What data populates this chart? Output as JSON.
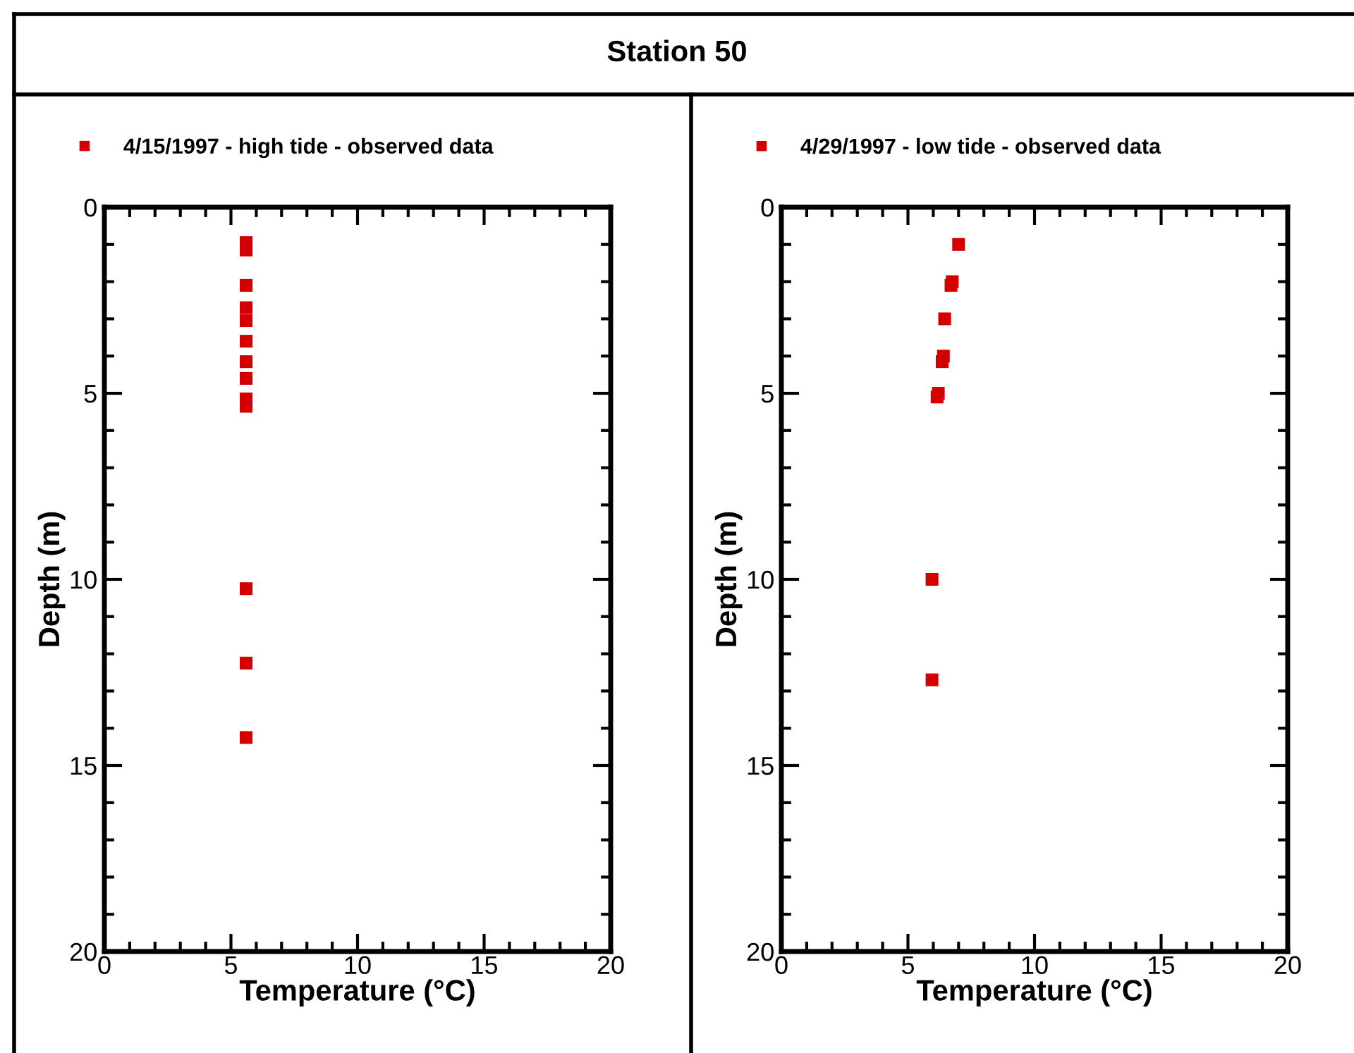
{
  "chart_data": [
    {
      "type": "scatter",
      "title": "Station 50",
      "xlabel": "Temperature (°C)",
      "ylabel": "Depth (m)",
      "legend": "top left",
      "marker": "square",
      "grid": false,
      "xlim": [
        0,
        20
      ],
      "ylim": [
        20,
        0
      ],
      "xticks": [
        0,
        {
          "value": 1,
          "label": null
        },
        {
          "value": 2,
          "label": null
        },
        {
          "value": 3,
          "label": null
        },
        {
          "value": 4,
          "label": null
        },
        5,
        {
          "value": 6,
          "label": null
        },
        {
          "value": 7,
          "label": null
        },
        {
          "value": 8,
          "label": null
        },
        {
          "value": 9,
          "label": null
        },
        10,
        {
          "value": 11,
          "label": null
        },
        {
          "value": 12,
          "label": null
        },
        {
          "value": 13,
          "label": null
        },
        {
          "value": 14,
          "label": null
        },
        15,
        {
          "value": 16,
          "label": null
        },
        {
          "value": 17,
          "label": null
        },
        {
          "value": 18,
          "label": null
        },
        {
          "value": 19,
          "label": null
        },
        20
      ],
      "yticks": [
        0,
        {
          "value": 1,
          "label": null
        },
        {
          "value": 2,
          "label": null
        },
        {
          "value": 3,
          "label": null
        },
        {
          "value": 4,
          "label": null
        },
        5,
        {
          "value": 6,
          "label": null
        },
        {
          "value": 7,
          "label": null
        },
        {
          "value": 8,
          "label": null
        },
        {
          "value": 9,
          "label": null
        },
        10,
        {
          "value": 11,
          "label": null
        },
        {
          "value": 12,
          "label": null
        },
        {
          "value": 13,
          "label": null
        },
        {
          "value": 14,
          "label": null
        },
        15,
        {
          "value": 16,
          "label": null
        },
        {
          "value": 17,
          "label": null
        },
        {
          "value": 18,
          "label": null
        },
        {
          "value": 19,
          "label": null
        },
        20
      ],
      "series": [
        {
          "name": "4/15/1997 - high tide - observed data",
          "color": "#d40000",
          "x": [
            5.6,
            5.6,
            5.6,
            5.6,
            5.6,
            5.6,
            5.6,
            5.6,
            5.6,
            5.6,
            5.6,
            5.6,
            5.6
          ],
          "values": [
            0.95,
            1.15,
            2.1,
            2.7,
            3.05,
            3.6,
            4.15,
            4.6,
            5.15,
            5.35,
            10.25,
            12.25,
            14.25
          ]
        }
      ]
    },
    {
      "type": "scatter",
      "xlabel": "Temperature (°C)",
      "ylabel": "Depth (m)",
      "legend": "top left",
      "marker": "square",
      "grid": false,
      "xlim": [
        0,
        20
      ],
      "ylim": [
        20,
        0
      ],
      "xticks": [
        0,
        {
          "value": 1,
          "label": null
        },
        {
          "value": 2,
          "label": null
        },
        {
          "value": 3,
          "label": null
        },
        {
          "value": 4,
          "label": null
        },
        5,
        {
          "value": 6,
          "label": null
        },
        {
          "value": 7,
          "label": null
        },
        {
          "value": 8,
          "label": null
        },
        {
          "value": 9,
          "label": null
        },
        10,
        {
          "value": 11,
          "label": null
        },
        {
          "value": 12,
          "label": null
        },
        {
          "value": 13,
          "label": null
        },
        {
          "value": 14,
          "label": null
        },
        15,
        {
          "value": 16,
          "label": null
        },
        {
          "value": 17,
          "label": null
        },
        {
          "value": 18,
          "label": null
        },
        {
          "value": 19,
          "label": null
        },
        20
      ],
      "yticks": [
        0,
        {
          "value": 1,
          "label": null
        },
        {
          "value": 2,
          "label": null
        },
        {
          "value": 3,
          "label": null
        },
        {
          "value": 4,
          "label": null
        },
        5,
        {
          "value": 6,
          "label": null
        },
        {
          "value": 7,
          "label": null
        },
        {
          "value": 8,
          "label": null
        },
        {
          "value": 9,
          "label": null
        },
        10,
        {
          "value": 11,
          "label": null
        },
        {
          "value": 12,
          "label": null
        },
        {
          "value": 13,
          "label": null
        },
        {
          "value": 14,
          "label": null
        },
        15,
        {
          "value": 16,
          "label": null
        },
        {
          "value": 17,
          "label": null
        },
        {
          "value": 18,
          "label": null
        },
        {
          "value": 19,
          "label": null
        },
        20
      ],
      "series": [
        {
          "name": "4/29/1997 - low tide - observed data",
          "color": "#d40000",
          "x": [
            7.0,
            6.75,
            6.7,
            6.45,
            6.4,
            6.35,
            6.2,
            6.15,
            5.95,
            5.95
          ],
          "values": [
            1.0,
            2.0,
            2.1,
            3.0,
            4.0,
            4.15,
            5.0,
            5.1,
            10.0,
            12.7
          ]
        }
      ]
    }
  ]
}
